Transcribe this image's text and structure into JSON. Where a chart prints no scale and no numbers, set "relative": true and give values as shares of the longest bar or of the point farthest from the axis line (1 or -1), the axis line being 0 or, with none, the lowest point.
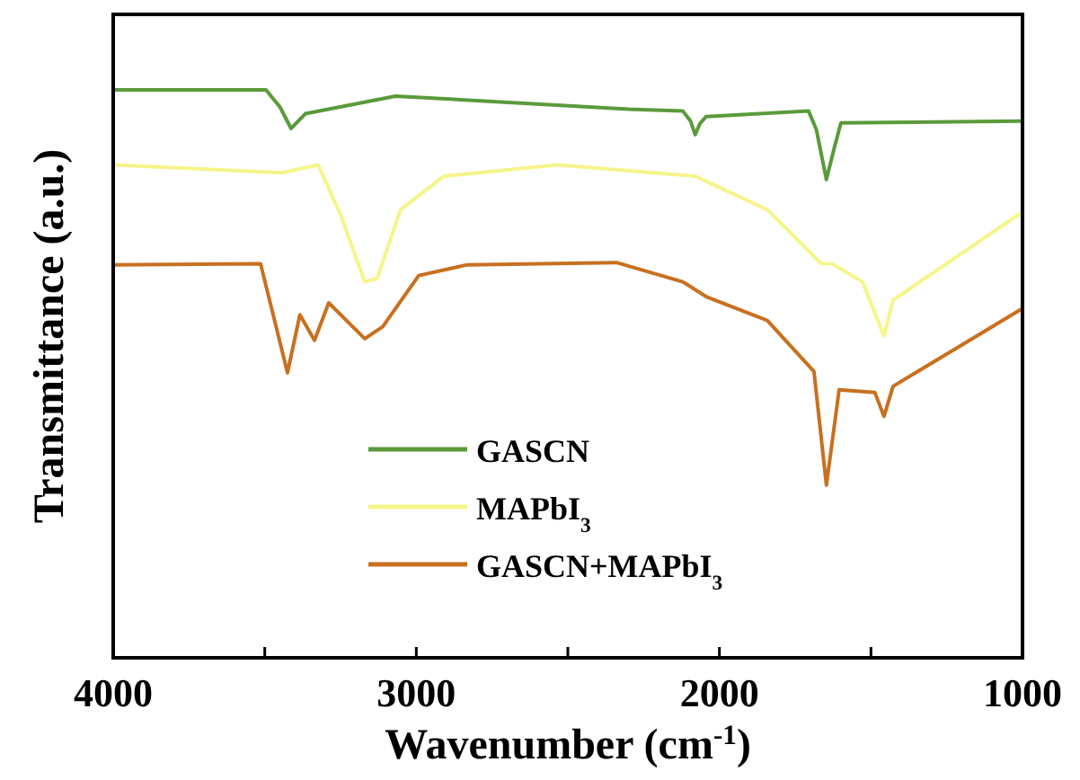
{
  "chart_data": {
    "type": "line",
    "relative": true,
    "xlabel": "Wavenumber (cm$^{-1}$)",
    "ylabel": "Transmittance (a.u.)",
    "xlim": [
      4000,
      1000
    ],
    "xticks": [
      4000,
      {
        "value": 3500,
        "label": null
      },
      3000,
      {
        "value": 2500,
        "label": null
      },
      2000,
      {
        "value": 1500,
        "label": null
      },
      1000
    ],
    "grid": false,
    "legend": "bottom",
    "marker": "none",
    "line_style": "solid",
    "series": [
      {
        "name": "GASCN",
        "color": "#5a9a3a",
        "x": [
          4000,
          3496,
          3450,
          3413,
          3366,
          3069,
          2299,
          2121,
          2095,
          2080,
          2065,
          2044,
          1706,
          1680,
          1647,
          1620,
          1599,
          1000
        ],
        "values": [
          1.0,
          1.0,
          0.97,
          0.932,
          0.958,
          0.989,
          0.966,
          0.963,
          0.945,
          0.921,
          0.94,
          0.953,
          0.963,
          0.93,
          0.842,
          0.9,
          0.942,
          0.945
        ]
      },
      {
        "name": "MAPbI$_{3}$",
        "color": "#f5f58a",
        "x": [
          4000,
          3443,
          3324,
          3250,
          3170,
          3129,
          3052,
          2909,
          2536,
          2080,
          1842,
          1664,
          1629,
          1528,
          1457,
          1427,
          1000
        ],
        "values": [
          0.868,
          0.854,
          0.868,
          0.78,
          0.662,
          0.668,
          0.789,
          0.848,
          0.868,
          0.848,
          0.789,
          0.694,
          0.694,
          0.662,
          0.567,
          0.63,
          0.785
        ]
      },
      {
        "name": "GASCN+MAPbI$_{3}$",
        "color": "#c87020",
        "x": [
          4000,
          3514,
          3425,
          3384,
          3336,
          3289,
          3170,
          3111,
          2992,
          2832,
          2340,
          2121,
          2044,
          1842,
          1688,
          1647,
          1605,
          1487,
          1457,
          1427,
          1000
        ],
        "values": [
          0.692,
          0.694,
          0.502,
          0.604,
          0.559,
          0.625,
          0.562,
          0.583,
          0.673,
          0.692,
          0.696,
          0.662,
          0.636,
          0.594,
          0.504,
          0.304,
          0.472,
          0.467,
          0.425,
          0.478,
          0.615
        ]
      }
    ]
  }
}
